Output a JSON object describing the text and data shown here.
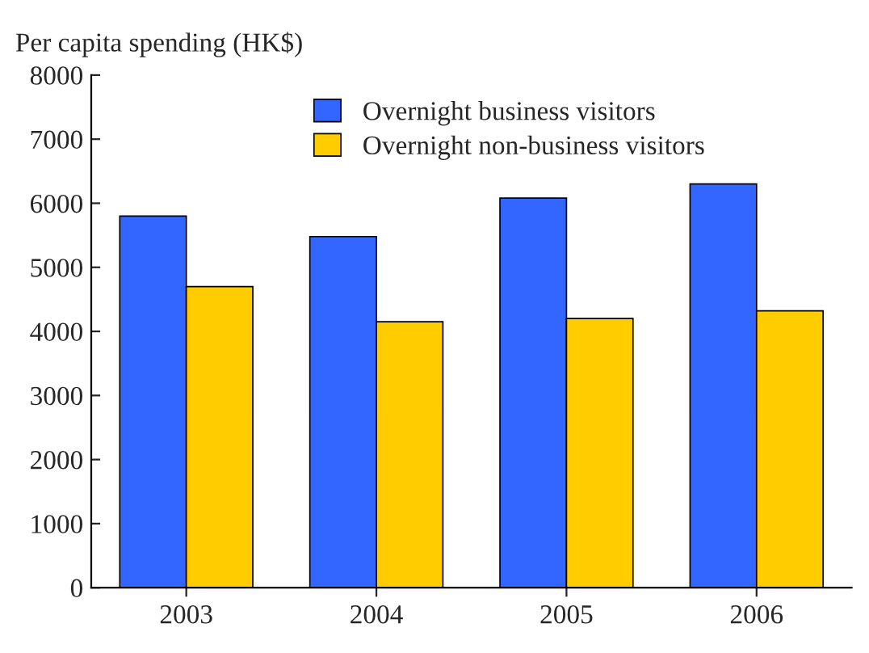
{
  "chart_data": {
    "type": "bar",
    "ylabel": "Per capita spending (HK$)",
    "categories": [
      "2003",
      "2004",
      "2005",
      "2006"
    ],
    "series": [
      {
        "name": "Overnight business visitors",
        "color": "#3366ff",
        "values": [
          5800,
          5480,
          6080,
          6300
        ]
      },
      {
        "name": "Overnight non-business visitors",
        "color": "#ffcc00",
        "values": [
          4700,
          4150,
          4200,
          4320
        ]
      }
    ],
    "ylim": [
      0,
      8000
    ],
    "yticks": [
      0,
      1000,
      2000,
      3000,
      4000,
      5000,
      6000,
      7000,
      8000
    ],
    "grid": false,
    "legend": "top"
  }
}
